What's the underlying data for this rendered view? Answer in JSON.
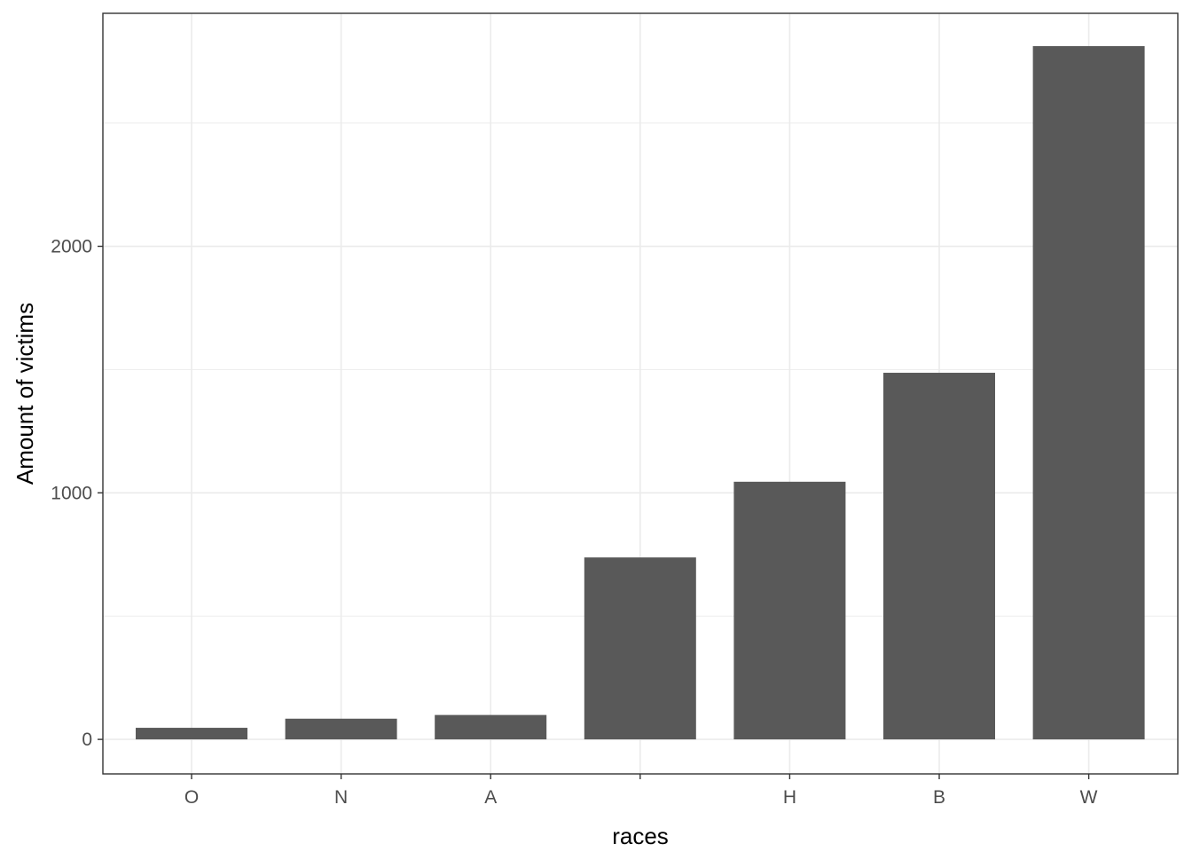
{
  "chart_data": {
    "type": "bar",
    "title": "",
    "xlabel": "races",
    "ylabel": "Amount of victims",
    "categories": [
      "O",
      "N",
      "A",
      "",
      "H",
      "B",
      "W"
    ],
    "values": [
      47,
      84,
      99,
      738,
      1045,
      1487,
      2812
    ],
    "ylim": [
      -140,
      2945
    ],
    "yticks": [
      0,
      1000,
      2000
    ],
    "y_minor_ticks": [
      500,
      1500,
      2500
    ],
    "grid": true,
    "legend": "none",
    "colors": {
      "bar": "#595959",
      "grid": "#ebebeb",
      "panel_border": "#333333",
      "tick_label": "#4d4d4d",
      "axis_title": "#000000",
      "background": "#ffffff"
    }
  }
}
